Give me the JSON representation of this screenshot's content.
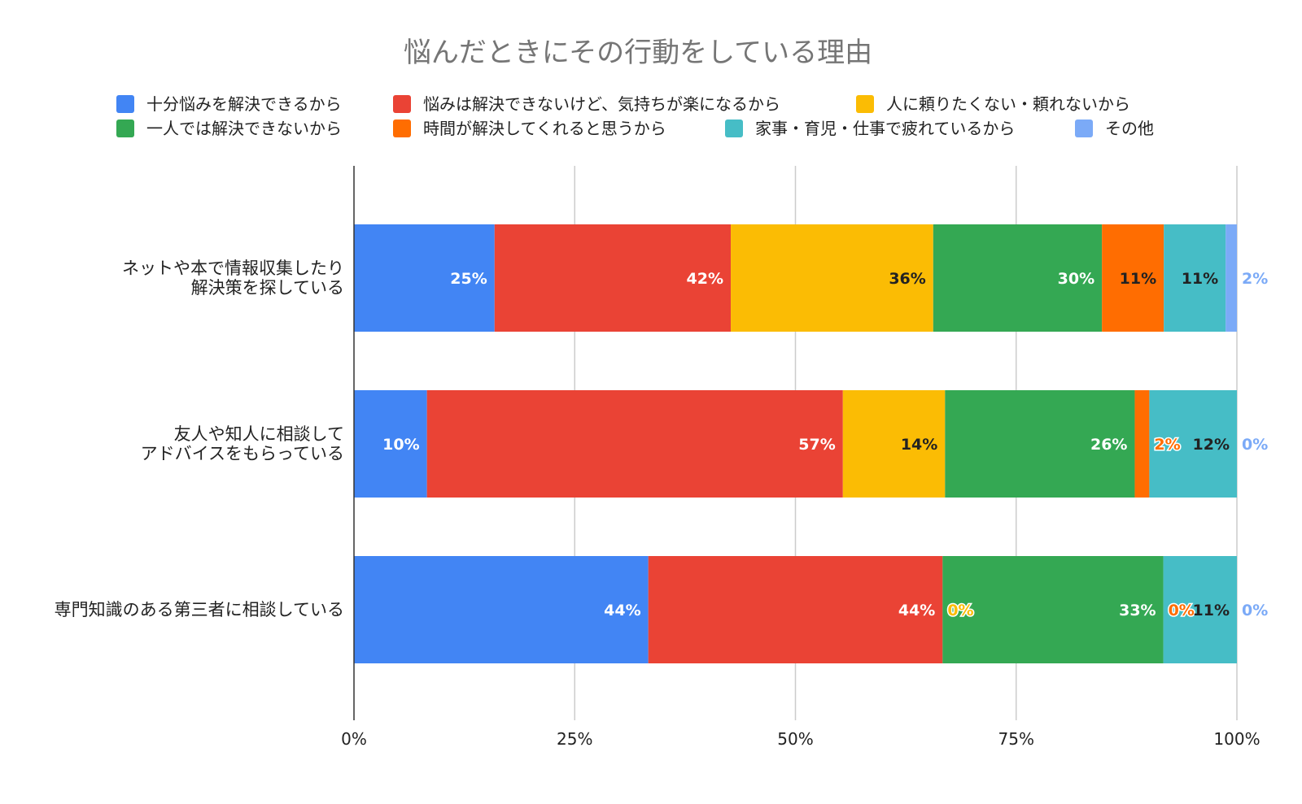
{
  "chart_data": {
    "type": "bar",
    "orientation": "horizontal",
    "stacked": "percent",
    "title": "悩んだときにその行動をしている理由",
    "categories": [
      [
        "ネットや本で情報収集したり",
        "解決策を探している"
      ],
      [
        "友人や知人に相談して",
        "アドバイスをもらっている"
      ],
      [
        "専門知識のある第三者に相談している"
      ]
    ],
    "series": [
      {
        "name": "十分悩みを解決できるから",
        "color": "#4285F4",
        "values": [
          25,
          10,
          44
        ]
      },
      {
        "name": "悩みは解決できないけど、気持ちが楽になるから",
        "color": "#EA4335",
        "values": [
          42,
          57,
          44
        ]
      },
      {
        "name": "人に頼りたくない・頼れないから",
        "color": "#FBBC04",
        "values": [
          36,
          14,
          0
        ]
      },
      {
        "name": "一人では解決できないから",
        "color": "#34A853",
        "values": [
          30,
          26,
          33
        ]
      },
      {
        "name": "時間が解決してくれると思うから",
        "color": "#FF6D01",
        "values": [
          11,
          2,
          0
        ]
      },
      {
        "name": "家事・育児・仕事で疲れているから",
        "color": "#46BDC6",
        "values": [
          11,
          12,
          11
        ]
      },
      {
        "name": "その他",
        "color": "#7BAAF7",
        "values": [
          2,
          0,
          0
        ]
      }
    ],
    "data_labels": [
      [
        "25%",
        "42%",
        "36%",
        "30%",
        "11%",
        "11%",
        "2%"
      ],
      [
        "10%",
        "57%",
        "14%",
        "26%",
        "2%",
        "12%",
        "0%"
      ],
      [
        "44%",
        "44%",
        "0%",
        "33%",
        "0%",
        "11%",
        "0%"
      ]
    ],
    "x_ticks": [
      "0%",
      "25%",
      "50%",
      "75%",
      "100%"
    ],
    "xlim": [
      0,
      100
    ],
    "xlabel": "",
    "ylabel": "",
    "grid": true,
    "legend_position": "top"
  }
}
